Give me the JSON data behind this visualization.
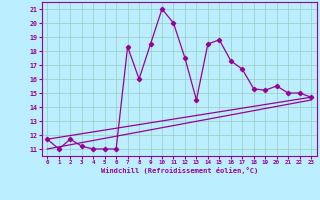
{
  "xlabel": "Windchill (Refroidissement éolien,°C)",
  "x_ticks": [
    0,
    1,
    2,
    3,
    4,
    5,
    6,
    7,
    8,
    9,
    10,
    11,
    12,
    13,
    14,
    15,
    16,
    17,
    18,
    19,
    20,
    21,
    22,
    23
  ],
  "y_ticks": [
    11,
    12,
    13,
    14,
    15,
    16,
    17,
    18,
    19,
    20,
    21
  ],
  "ylim": [
    10.5,
    21.5
  ],
  "xlim": [
    -0.5,
    23.5
  ],
  "line_color": "#990099",
  "bg_color": "#bbeeff",
  "grid_color": "#99ccbb",
  "series1_x": [
    0,
    1,
    2,
    3,
    4,
    5,
    6,
    7,
    8,
    9,
    10,
    11,
    12,
    13,
    14,
    15,
    16,
    17,
    18,
    19,
    20,
    21,
    22,
    23
  ],
  "series1_y": [
    11.7,
    11.0,
    11.7,
    11.2,
    11.0,
    11.0,
    11.0,
    18.3,
    16.0,
    18.5,
    21.0,
    20.0,
    17.5,
    14.5,
    18.5,
    18.8,
    17.3,
    16.7,
    15.3,
    15.2,
    15.5,
    15.0,
    15.0,
    14.7
  ],
  "series2_x": [
    0,
    23
  ],
  "series2_y": [
    11.7,
    14.7
  ],
  "series3_x": [
    0,
    23
  ],
  "series3_y": [
    11.0,
    14.5
  ]
}
